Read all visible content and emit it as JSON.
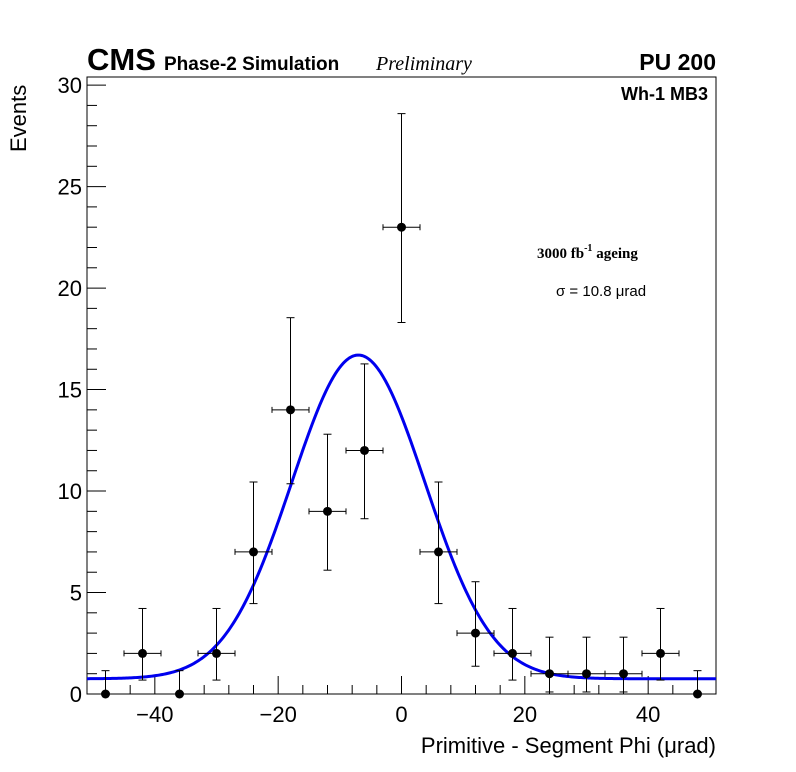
{
  "chart_data": {
    "type": "scatter",
    "title": {
      "experiment": "CMS",
      "subtitle": "Phase-2 Simulation",
      "status": "Preliminary",
      "pileup": "PU 200"
    },
    "annotations": {
      "region": "Wh-1 MB3",
      "ageing": "3000 fb",
      "ageing_exp": "-1",
      "ageing_suffix": " ageing",
      "sigma_label": "σ = 10.8 μrad"
    },
    "xlabel": "Primitive - Segment Phi (μrad)",
    "ylabel": "Events",
    "xlim": [
      -51,
      51
    ],
    "ylim": [
      0,
      30.4
    ],
    "xticks": [
      -40,
      -20,
      0,
      20,
      40
    ],
    "xtick_labels": [
      "−40",
      "−20",
      "0",
      "20",
      "40"
    ],
    "yticks": [
      0,
      5,
      10,
      15,
      20,
      25,
      30
    ],
    "ytick_labels": [
      "0",
      "5",
      "10",
      "15",
      "20",
      "25",
      "30"
    ],
    "grid": false,
    "legend": "none",
    "bin_width": 6,
    "series": [
      {
        "name": "data",
        "color": "#000000",
        "x": [
          -48,
          -42,
          -36,
          -30,
          -24,
          -18,
          -12,
          -6,
          0,
          6,
          12,
          18,
          24,
          30,
          36,
          42,
          48
        ],
        "y": [
          0,
          2,
          0,
          2,
          7,
          14,
          9,
          12,
          23,
          7,
          3,
          2,
          1,
          1,
          1,
          2,
          0
        ]
      }
    ],
    "fit": {
      "name": "gaussian-fit",
      "color": "#0000ee",
      "function": "gaussian+constant",
      "amplitude": 15.95,
      "mean": -7.0,
      "sigma": 10.8,
      "constant": 0.75
    }
  }
}
